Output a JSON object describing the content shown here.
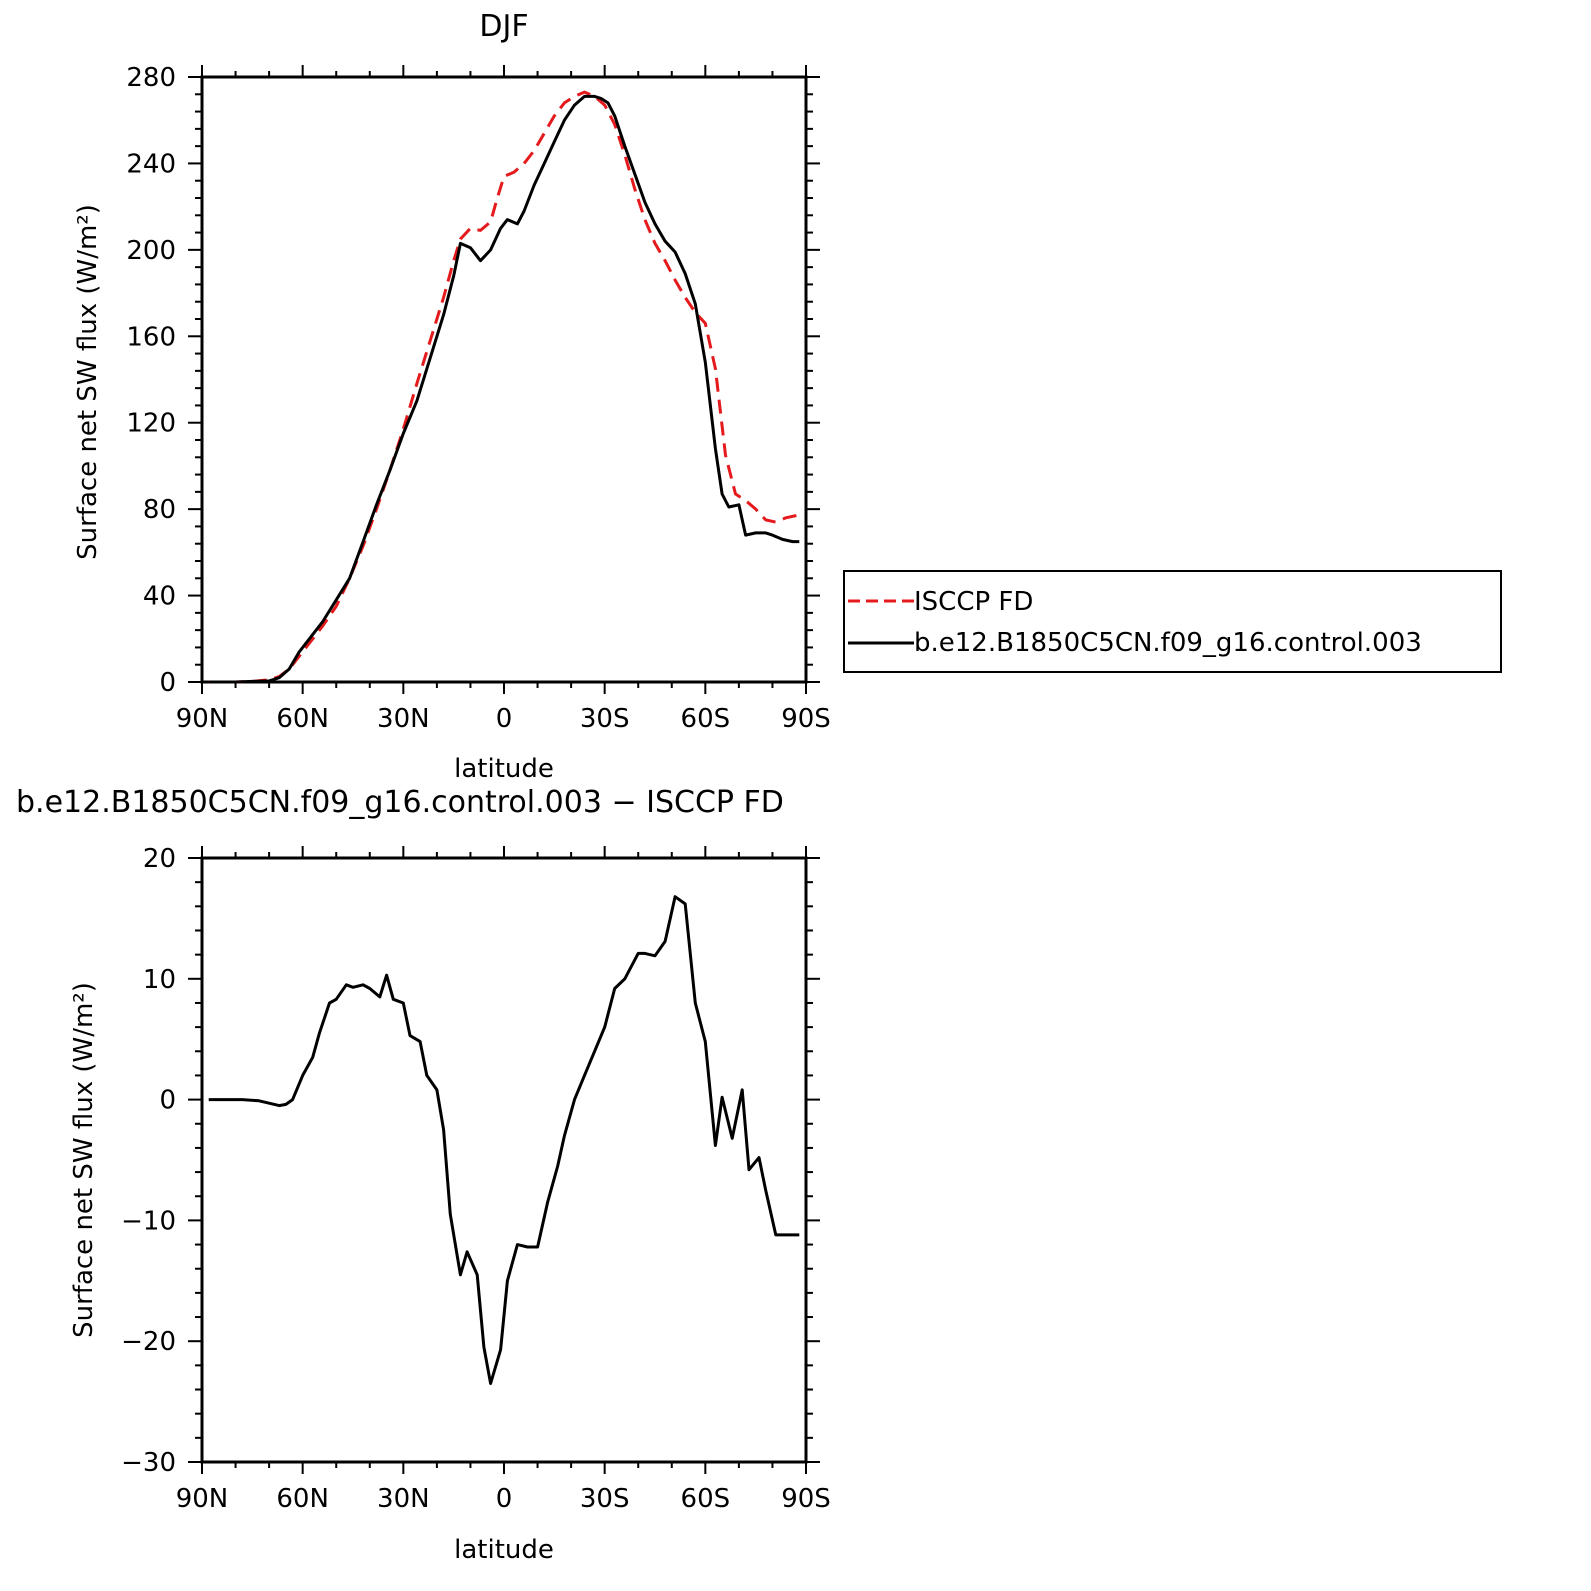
{
  "chart_data": [
    {
      "type": "line",
      "title": "DJF",
      "xlabel": "latitude",
      "ylabel": "Surface net SW flux (W/m²)",
      "xlim": [
        -90,
        90
      ],
      "ylim": [
        0,
        280
      ],
      "xticks": [
        -90,
        -60,
        -30,
        0,
        30,
        60,
        90
      ],
      "xtick_labels": [
        "90N",
        "60N",
        "30N",
        "0",
        "30S",
        "60S",
        "90S"
      ],
      "yticks": [
        0,
        40,
        80,
        120,
        160,
        200,
        240,
        280
      ],
      "ytick_labels": [
        "0",
        "40",
        "80",
        "120",
        "160",
        "200",
        "240",
        "280"
      ],
      "legend_position": "right",
      "series": [
        {
          "name": "ISCCP FD",
          "color": "#e41a1c",
          "style": "dashed",
          "x": [
            -88,
            -80,
            -75,
            -70,
            -67,
            -64,
            -61,
            -58,
            -54,
            -50,
            -46,
            -42,
            -38,
            -34,
            -30,
            -26,
            -22,
            -18,
            -15,
            -13,
            -10,
            -7,
            -4,
            -2,
            0,
            3,
            6,
            9,
            12,
            15,
            18,
            21,
            24,
            27,
            30,
            33,
            36,
            39,
            42,
            45,
            48,
            51,
            54,
            57,
            60,
            63,
            66,
            69,
            72,
            75,
            78,
            81,
            84,
            87,
            89
          ],
          "values": [
            0,
            0,
            0.3,
            1,
            2.5,
            6,
            12,
            18,
            26,
            35,
            48,
            63,
            80,
            98,
            117,
            138,
            158,
            178,
            195,
            205,
            210,
            209,
            213,
            224,
            234,
            236,
            240,
            246,
            254,
            262,
            268,
            271,
            273,
            271,
            267,
            258,
            244,
            228,
            214,
            203,
            195,
            186,
            178,
            171,
            166,
            145,
            105,
            87,
            84,
            80,
            75,
            74,
            76,
            77,
            78
          ]
        },
        {
          "name": "b.e12.B1850C5CN.f09_g16.control.003",
          "color": "#000000",
          "style": "solid",
          "x": [
            -88,
            -80,
            -75,
            -70,
            -67,
            -64,
            -61,
            -58,
            -54,
            -50,
            -46,
            -42,
            -38,
            -34,
            -30,
            -26,
            -22,
            -18,
            -15,
            -13,
            -10,
            -7,
            -4,
            -1,
            1,
            4,
            6,
            9,
            12,
            15,
            18,
            21,
            24,
            27,
            29,
            31,
            33,
            36,
            39,
            42,
            45,
            48,
            51,
            54,
            57,
            60,
            63,
            65,
            67,
            70,
            72,
            75,
            78,
            80,
            83,
            86,
            88
          ],
          "values": [
            0,
            0,
            0.3,
            0.5,
            2,
            6,
            14,
            20,
            28,
            38,
            48,
            65,
            82,
            98,
            115,
            130,
            150,
            170,
            188,
            203,
            201,
            195,
            200,
            210,
            214,
            212,
            218,
            230,
            240,
            250,
            260,
            267,
            271,
            271,
            270,
            268,
            262,
            248,
            235,
            222,
            212,
            204,
            199,
            189,
            175,
            148,
            108,
            87,
            81,
            82,
            68,
            69,
            69,
            68,
            66,
            65,
            65
          ]
        }
      ]
    },
    {
      "type": "line",
      "title": "b.e12.B1850C5CN.f09_g16.control.003 − ISCCP FD",
      "xlabel": "latitude",
      "ylabel": "Surface net SW flux (W/m²)",
      "xlim": [
        -90,
        90
      ],
      "ylim": [
        -30,
        20
      ],
      "xticks": [
        -90,
        -60,
        -30,
        0,
        30,
        60,
        90
      ],
      "xtick_labels": [
        "90N",
        "60N",
        "30N",
        "0",
        "30S",
        "60S",
        "90S"
      ],
      "yticks": [
        -30,
        -20,
        -10,
        0,
        10,
        20
      ],
      "ytick_labels": [
        "−30",
        "−20",
        "−10",
        "0",
        "10",
        "20"
      ],
      "series": [
        {
          "color": "#000000",
          "style": "solid",
          "x": [
            -88,
            -83,
            -78,
            -73,
            -70,
            -67,
            -65,
            -63,
            -60,
            -57,
            -55,
            -52,
            -50,
            -47,
            -45,
            -42,
            -40,
            -37,
            -35,
            -33,
            -30,
            -28,
            -25,
            -23,
            -20,
            -18,
            -16,
            -13,
            -11,
            -8,
            -6,
            -4,
            -1,
            1,
            4,
            7,
            10,
            13,
            16,
            18,
            21,
            24,
            27,
            30,
            33,
            36,
            40,
            42,
            45,
            48,
            51,
            54,
            57,
            60,
            63,
            65,
            68,
            71,
            73,
            76,
            78,
            81,
            83,
            86,
            88
          ],
          "values": [
            0,
            0,
            0,
            -0.1,
            -0.3,
            -0.5,
            -0.4,
            0,
            2,
            3.5,
            5.5,
            8,
            8.3,
            9.5,
            9.3,
            9.5,
            9.2,
            8.5,
            10.3,
            8.3,
            8,
            5.3,
            4.8,
            2,
            0.8,
            -2.5,
            -9.5,
            -14.5,
            -12.6,
            -14.5,
            -20.5,
            -23.5,
            -20.7,
            -15,
            -12,
            -12.2,
            -12.2,
            -8.5,
            -5.5,
            -3,
            0,
            2,
            4,
            6,
            9.2,
            10,
            12.1,
            12.1,
            11.9,
            13.1,
            16.8,
            16.2,
            8,
            4.8,
            -3.8,
            0.2,
            -3.2,
            0.8,
            -5.8,
            -4.8,
            -7.5,
            -11.2,
            -11.2,
            -11.2,
            -11.2
          ]
        }
      ]
    }
  ]
}
